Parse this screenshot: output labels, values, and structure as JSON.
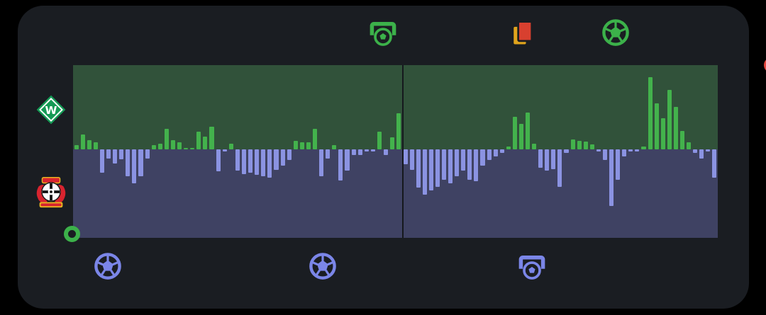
{
  "colors": {
    "background": "#000000",
    "panel": "#1a1d22",
    "home_bar": "#43b24c",
    "away_bar": "#8b93e2",
    "home_area": "#31523a",
    "away_area": "#3f4263",
    "live_cursor": "#e2453c",
    "start_marker": "#3cb14a",
    "home_icon": "#3cb14a",
    "away_icon": "#7b86e8",
    "card_red": "#d8402f",
    "card_yellow": "#e0a41c",
    "werder_green": "#149a55"
  },
  "teams": {
    "home": {
      "logo_icon": "werder-bremen-logo",
      "side": "top"
    },
    "away": {
      "logo_icon": "bayer-leverkusen-logo",
      "side": "bottom"
    }
  },
  "chart_data": {
    "type": "bar",
    "ylim": [
      -100,
      100
    ],
    "grid": false,
    "halves": [
      {
        "values": [
          5,
          18,
          11,
          8,
          -26,
          -10,
          -16,
          -11,
          -30,
          -38,
          -30,
          -10,
          5,
          7,
          24,
          11,
          8,
          2,
          2,
          21,
          15,
          27,
          -25,
          -2,
          7,
          -24,
          -28,
          -26,
          -29,
          -30,
          -32,
          -23,
          -18,
          -12,
          10,
          8,
          8,
          24,
          -30,
          -10,
          5,
          -35,
          -24,
          -6,
          -6,
          -2,
          -2,
          21,
          -6,
          14,
          43
        ]
      },
      {
        "values": [
          -17,
          -23,
          -43,
          -51,
          -46,
          -42,
          -34,
          -38,
          -30,
          -24,
          -34,
          -36,
          -18,
          -12,
          -8,
          -4,
          3,
          39,
          30,
          44,
          7,
          -21,
          -24,
          -22,
          -42,
          -4,
          12,
          10,
          9,
          6,
          -2,
          -12,
          -64,
          -34,
          -8,
          -2,
          -2,
          3,
          86,
          55,
          37,
          71,
          50,
          22,
          8,
          -4,
          -10,
          -2,
          -32
        ]
      }
    ],
    "markers": {
      "start_position_pct": 0,
      "live_position_pct": 100
    }
  },
  "events": {
    "home": [
      {
        "icon": "goal-post-icon",
        "pos_pct": 48.1
      },
      {
        "icon": "red-card-icon",
        "pos_pct": 69.7
      },
      {
        "icon": "football-icon",
        "pos_pct": 84.2
      }
    ],
    "away": [
      {
        "icon": "football-icon",
        "pos_pct": 5.4
      },
      {
        "icon": "football-icon",
        "pos_pct": 38.7
      },
      {
        "icon": "goal-post-icon",
        "pos_pct": 71.2
      }
    ]
  }
}
